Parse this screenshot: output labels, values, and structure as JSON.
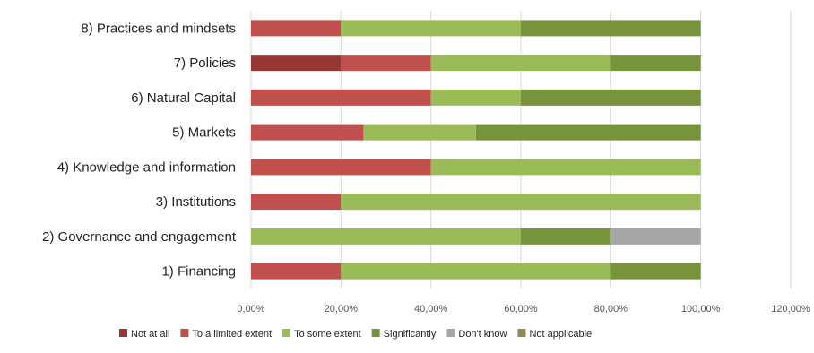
{
  "chart_data": {
    "type": "bar",
    "orientation": "horizontal",
    "stacked": true,
    "categories": [
      "8) Practices and mindsets",
      "7) Policies",
      "6) Natural Capital",
      "5) Markets",
      "4) Knowledge and information",
      "3) Institutions",
      "2) Governance and engagement",
      "1) Financing"
    ],
    "series": [
      {
        "name": "Not at all",
        "color": "#953735",
        "values": [
          0,
          0.2,
          0,
          0,
          0,
          0,
          0,
          0
        ]
      },
      {
        "name": "To a limited extent",
        "color": "#C0504D",
        "values": [
          0.2,
          0.2,
          0.4,
          0.25,
          0.4,
          0.2,
          0,
          0.2
        ]
      },
      {
        "name": "To some extent",
        "color": "#9BBB59",
        "values": [
          0.4,
          0.4,
          0.2,
          0.25,
          0.6,
          0.8,
          0.6,
          0.6
        ]
      },
      {
        "name": "Significantly",
        "color": "#77933C",
        "values": [
          0.4,
          0.2,
          0.4,
          0.5,
          0,
          0,
          0.2,
          0.2
        ]
      },
      {
        "name": "Don't know",
        "color": "#A6A6A6",
        "values": [
          0,
          0,
          0,
          0,
          0,
          0,
          0.2,
          0
        ]
      },
      {
        "name": "Not applicable",
        "color": "#948A54",
        "values": [
          0,
          0,
          0,
          0,
          0,
          0,
          0,
          0
        ]
      }
    ],
    "xlim": [
      0,
      1.2
    ],
    "xticks": [
      0,
      0.2,
      0.4,
      0.6,
      0.8,
      1.0,
      1.2
    ],
    "xtick_labels": [
      "0,00%",
      "20,00%",
      "40,00%",
      "60,00%",
      "80,00%",
      "100,00%",
      "120,00%"
    ],
    "grid": true,
    "legend_position": "bottom",
    "title": "",
    "xlabel": "",
    "ylabel": ""
  }
}
